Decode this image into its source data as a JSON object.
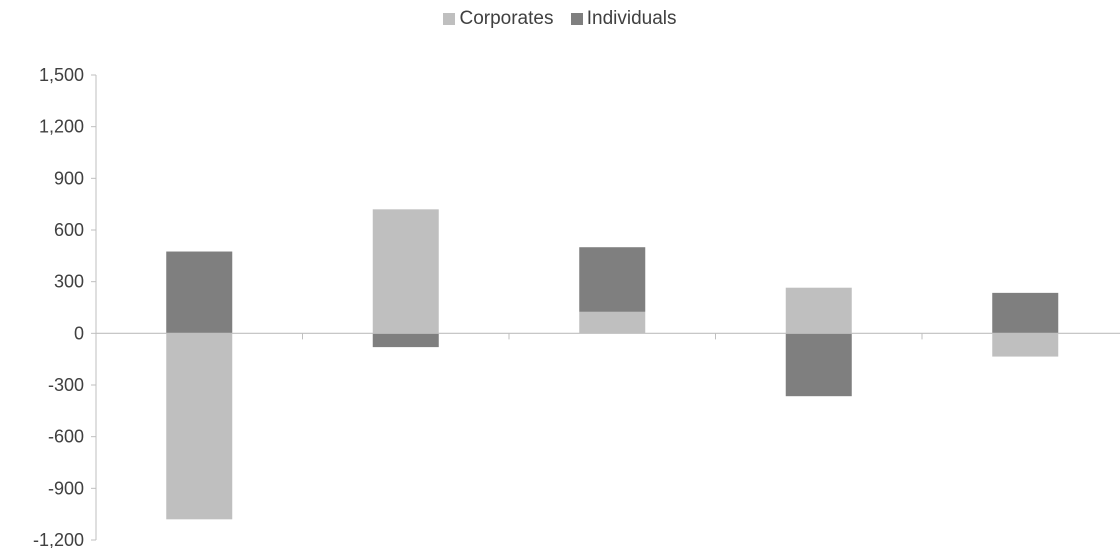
{
  "chart_data": {
    "type": "bar",
    "stacked": true,
    "categories": [
      "",
      "",
      "",
      "",
      ""
    ],
    "series": [
      {
        "name": "Corporates",
        "color": "#bfbfbf",
        "values": [
          -1080,
          720,
          125,
          265,
          -135
        ]
      },
      {
        "name": "Individuals",
        "color": "#7f7f7f",
        "values": [
          475,
          -80,
          375,
          -365,
          235
        ]
      }
    ],
    "ylim": [
      -1200,
      1500
    ],
    "yticks": [
      1500,
      1200,
      900,
      600,
      300,
      0,
      -300,
      -600,
      -900,
      -1200
    ],
    "ytick_labels": [
      "1,500",
      "1,200",
      "900",
      "600",
      "300",
      "0",
      "-300",
      "-600",
      "-900",
      "-1,200"
    ],
    "legend_position": "top",
    "grid": false
  }
}
